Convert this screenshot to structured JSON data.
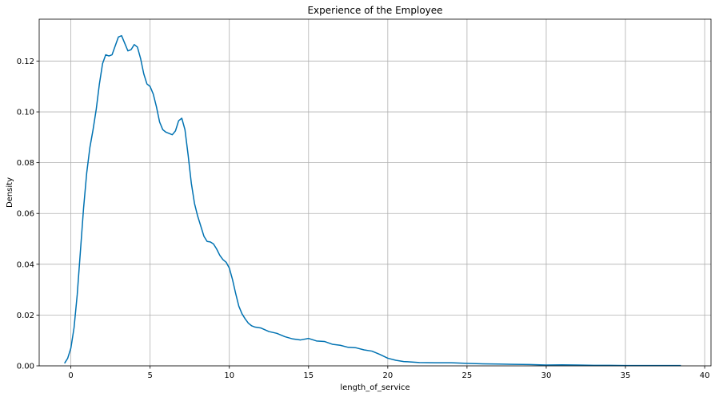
{
  "chart_data": {
    "type": "line",
    "title": "Experience of the Employee",
    "xlabel": "length_of_service",
    "ylabel": "Density",
    "xlim": [
      -2,
      40.4
    ],
    "ylim": [
      0,
      0.1365
    ],
    "grid": true,
    "x_ticks": [
      0,
      5,
      10,
      15,
      20,
      25,
      30,
      35,
      40
    ],
    "x_tick_labels": [
      "0",
      "5",
      "10",
      "15",
      "20",
      "25",
      "30",
      "35",
      "40"
    ],
    "y_ticks": [
      0,
      0.02,
      0.04,
      0.06,
      0.08,
      0.1,
      0.12
    ],
    "y_tick_labels": [
      "0.00",
      "0.02",
      "0.04",
      "0.06",
      "0.08",
      "0.10",
      "0.12"
    ],
    "colors": {
      "line": "#0072b2"
    },
    "series": [
      {
        "x": [
          -0.4,
          -0.2,
          0.0,
          0.2,
          0.4,
          0.6,
          0.8,
          1.0,
          1.2,
          1.4,
          1.6,
          1.8,
          2.0,
          2.2,
          2.4,
          2.6,
          2.8,
          3.0,
          3.2,
          3.4,
          3.6,
          3.8,
          4.0,
          4.2,
          4.4,
          4.6,
          4.8,
          5.0,
          5.2,
          5.4,
          5.6,
          5.8,
          6.0,
          6.2,
          6.4,
          6.6,
          6.8,
          7.0,
          7.2,
          7.4,
          7.6,
          7.8,
          8.0,
          8.2,
          8.4,
          8.6,
          8.8,
          9.0,
          9.2,
          9.4,
          9.6,
          9.8,
          10.0,
          10.2,
          10.4,
          10.6,
          10.8,
          11.0,
          11.2,
          11.4,
          11.6,
          11.8,
          12.0,
          12.5,
          13.0,
          13.5,
          14.0,
          14.5,
          15.0,
          15.5,
          16.0,
          16.5,
          17.0,
          17.5,
          18.0,
          18.5,
          19.0,
          19.5,
          20.0,
          20.5,
          21.0,
          22.0,
          23.0,
          24.0,
          25.0,
          26.0,
          27.0,
          28.0,
          29.0,
          30.0,
          31.0,
          32.0,
          33.0,
          34.0,
          35.0,
          36.0,
          37.0,
          38.0,
          38.5
        ],
        "y": [
          0.001,
          0.003,
          0.007,
          0.015,
          0.028,
          0.045,
          0.062,
          0.076,
          0.086,
          0.093,
          0.101,
          0.111,
          0.119,
          0.1225,
          0.122,
          0.1225,
          0.126,
          0.1295,
          0.13,
          0.127,
          0.124,
          0.1245,
          0.1265,
          0.1255,
          0.121,
          0.115,
          0.111,
          0.11,
          0.107,
          0.102,
          0.096,
          0.093,
          0.092,
          0.0915,
          0.091,
          0.0925,
          0.0965,
          0.0975,
          0.093,
          0.083,
          0.072,
          0.064,
          0.059,
          0.055,
          0.051,
          0.049,
          0.0488,
          0.048,
          0.046,
          0.0435,
          0.0418,
          0.0408,
          0.0385,
          0.034,
          0.0285,
          0.0235,
          0.0205,
          0.0185,
          0.0168,
          0.0158,
          0.0153,
          0.0151,
          0.0149,
          0.0135,
          0.0128,
          0.0115,
          0.0106,
          0.0102,
          0.0108,
          0.0098,
          0.0096,
          0.0085,
          0.0081,
          0.0073,
          0.0071,
          0.0063,
          0.0058,
          0.0045,
          0.003,
          0.0022,
          0.0017,
          0.0013,
          0.0012,
          0.0012,
          0.001,
          0.0008,
          0.0007,
          0.0006,
          0.0005,
          0.0003,
          0.0004,
          0.0003,
          0.0002,
          0.0002,
          0.0001,
          0.0001,
          0.0001,
          0.0001,
          0.0001
        ]
      }
    ]
  }
}
